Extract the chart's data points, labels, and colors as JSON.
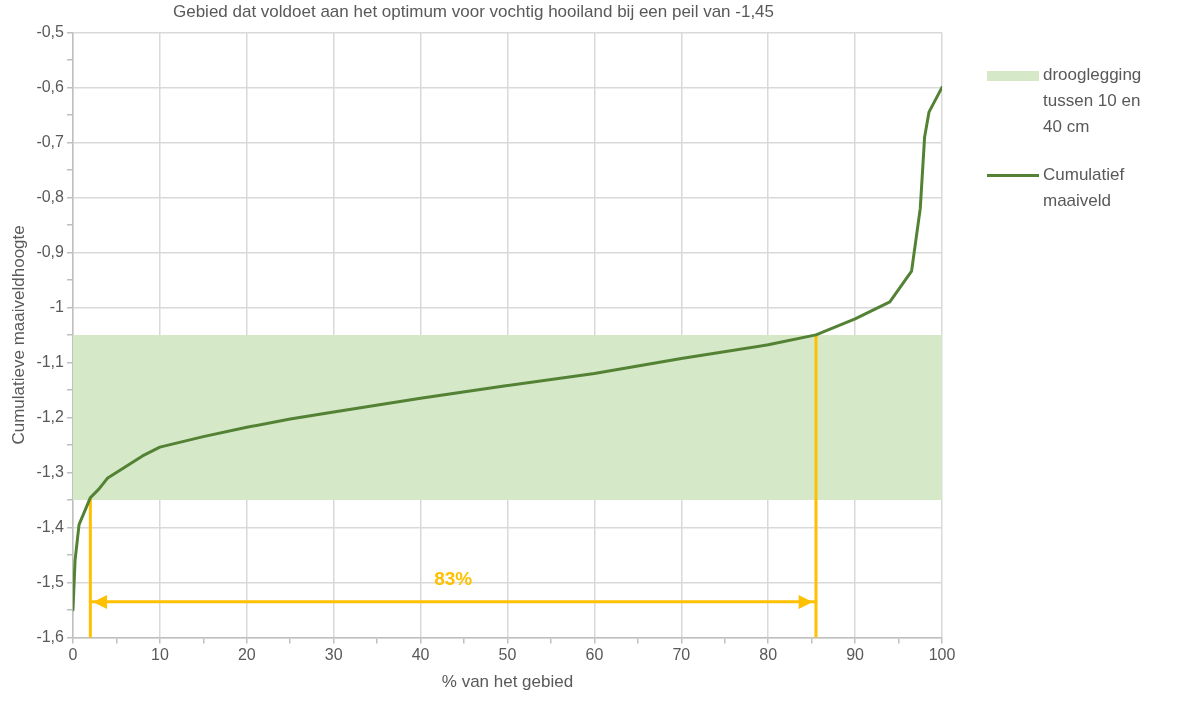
{
  "chart_data": {
    "type": "line",
    "title": "Gebied dat voldoet aan het optimum voor vochtig hooiland bij een peil van -1,45",
    "xlabel": "% van het gebied",
    "ylabel": "Cumulatieve maaiveldhoogte",
    "xlim": [
      0,
      100
    ],
    "xticks": [
      0,
      {
        "value": 5,
        "label": null
      },
      10,
      {
        "value": 15,
        "label": null
      },
      20,
      {
        "value": 25,
        "label": null
      },
      30,
      {
        "value": 35,
        "label": null
      },
      40,
      {
        "value": 45,
        "label": null
      },
      50,
      {
        "value": 55,
        "label": null
      },
      60,
      {
        "value": 65,
        "label": null
      },
      70,
      {
        "value": 75,
        "label": null
      },
      80,
      {
        "value": 85,
        "label": null
      },
      90,
      {
        "value": 95,
        "label": null
      },
      100
    ],
    "ylim": [
      -1.6,
      -0.5
    ],
    "yticks": [
      {
        "value": -1.6,
        "label": "-1,6"
      },
      {
        "value": -1.55,
        "label": null
      },
      {
        "value": -1.5,
        "label": "-1,5"
      },
      {
        "value": -1.45,
        "label": null
      },
      {
        "value": -1.4,
        "label": "-1,4"
      },
      {
        "value": -1.35,
        "label": null
      },
      {
        "value": -1.3,
        "label": "-1,3"
      },
      {
        "value": -1.25,
        "label": null
      },
      {
        "value": -1.2,
        "label": "-1,2"
      },
      {
        "value": -1.15,
        "label": null
      },
      {
        "value": -1.1,
        "label": "-1,1"
      },
      {
        "value": -1.05,
        "label": null
      },
      {
        "value": -1,
        "label": "-1"
      },
      {
        "value": -0.95,
        "label": null
      },
      {
        "value": -0.9,
        "label": "-0,9"
      },
      {
        "value": -0.85,
        "label": null
      },
      {
        "value": -0.8,
        "label": "-0,8"
      },
      {
        "value": -0.75,
        "label": null
      },
      {
        "value": -0.7,
        "label": "-0,7"
      },
      {
        "value": -0.65,
        "label": null
      },
      {
        "value": -0.6,
        "label": "-0,6"
      },
      {
        "value": -0.55,
        "label": null
      },
      {
        "value": -0.5,
        "label": "-0,5"
      }
    ],
    "series": [
      {
        "name": "Cumulatief maaiveld",
        "color": "#548235",
        "x": [
          0,
          0.24,
          0.7,
          2,
          3,
          4,
          6,
          8,
          10,
          15,
          20,
          25,
          30,
          40,
          50,
          60,
          70,
          80,
          85.5,
          90,
          94,
          96.5,
          97.5,
          98,
          98.5,
          100
        ],
        "values": [
          -1.55,
          -1.46,
          -1.395,
          -1.346,
          -1.33,
          -1.31,
          -1.29,
          -1.27,
          -1.254,
          -1.235,
          -1.218,
          -1.203,
          -1.19,
          -1.165,
          -1.142,
          -1.12,
          -1.093,
          -1.068,
          -1.05,
          -1.021,
          -0.99,
          -0.934,
          -0.82,
          -0.69,
          -0.645,
          -0.6
        ]
      },
      {
        "color": "#ffc000",
        "x": [
          2,
          2
        ],
        "values": [
          -1.6,
          -1.346
        ]
      },
      {
        "color": "#ffc000",
        "x": [
          85.5,
          85.5
        ],
        "values": [
          -1.6,
          -1.05
        ]
      },
      {
        "color": "#ffc000",
        "x": [
          2,
          85.5
        ],
        "values": [
          -1.535,
          -1.535
        ]
      }
    ],
    "bands": [
      {
        "axis": "y",
        "from": -1.35,
        "to": -1.05,
        "label": "drooglegging tussen 10 en 40 cm",
        "color": "#d5e8c8"
      }
    ],
    "annotations": [
      "83%"
    ],
    "grid": true,
    "legend": "right",
    "marker": "none",
    "line_style": "solid"
  }
}
